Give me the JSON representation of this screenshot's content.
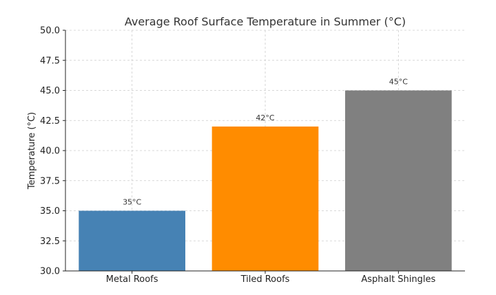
{
  "chart_data": {
    "type": "bar",
    "title": "Average Roof Surface Temperature in Summer (°C)",
    "xlabel": "",
    "ylabel": "Temperature (°C)",
    "categories": [
      "Metal Roofs",
      "Tiled Roofs",
      "Asphalt Shingles"
    ],
    "values": [
      35,
      42,
      45
    ],
    "data_labels": [
      "35°C",
      "42°C",
      "45°C"
    ],
    "colors": [
      "#4682b4",
      "#ff8c00",
      "#808080"
    ],
    "ylim": [
      30.0,
      50.0
    ],
    "yticks": [
      "30.0",
      "32.5",
      "35.0",
      "37.5",
      "40.0",
      "42.5",
      "45.0",
      "47.5",
      "50.0"
    ],
    "grid": true,
    "legend": "none"
  }
}
